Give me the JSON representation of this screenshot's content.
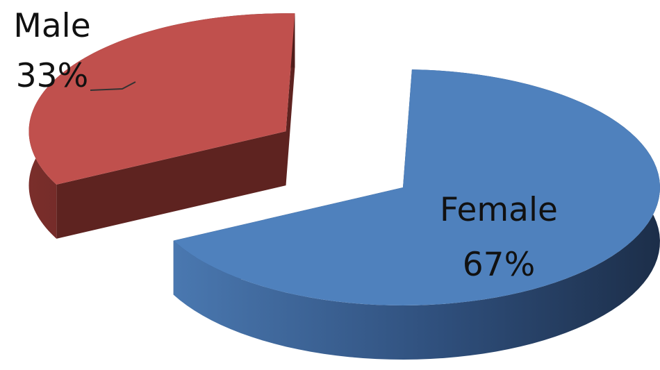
{
  "chart_data": {
    "type": "pie",
    "style": "3d-exploded",
    "slices": [
      {
        "label": "Male",
        "percent_label": "33%",
        "value": 33,
        "color": "#c0504d",
        "side_color": "#5e2320",
        "exploded": true
      },
      {
        "label": "Female",
        "percent_label": "67%",
        "value": 67,
        "color": "#4f81bd",
        "side_color": "#243b5c",
        "exploded": false
      }
    ],
    "legend": "none",
    "data_labels": "category and percentage"
  }
}
